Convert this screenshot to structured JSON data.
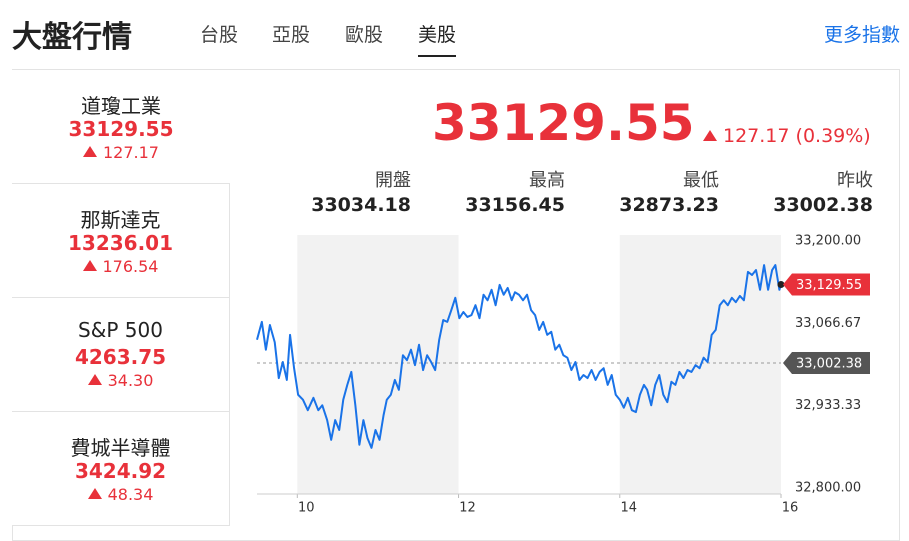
{
  "header": {
    "title": "大盤行情",
    "tabs": [
      "台股",
      "亞股",
      "歐股",
      "美股"
    ],
    "more": "更多指數"
  },
  "indices": [
    {
      "name": "道瓊工業",
      "value": "33129.55",
      "change": "127.17"
    },
    {
      "name": "那斯達克",
      "value": "13236.01",
      "change": "176.54"
    },
    {
      "name": "S&P 500",
      "value": "4263.75",
      "change": "34.30"
    },
    {
      "name": "費城半導體",
      "value": "3424.92",
      "change": "48.34"
    }
  ],
  "quote": {
    "price": "33129.55",
    "change": "127.17",
    "change_percent": "(0.39%)",
    "stats": [
      {
        "label": "開盤",
        "value": "33034.18"
      },
      {
        "label": "最高",
        "value": "33156.45"
      },
      {
        "label": "最低",
        "value": "32873.23"
      },
      {
        "label": "昨收",
        "value": "33002.38"
      }
    ]
  },
  "chart_data": {
    "type": "line",
    "color": "#1a73e8",
    "x": [
      9.5,
      9.56,
      9.61,
      9.66,
      9.72,
      9.77,
      9.82,
      9.87,
      9.91,
      9.96,
      10.01,
      10.07,
      10.13,
      10.2,
      10.26,
      10.31,
      10.37,
      10.42,
      10.47,
      10.52,
      10.57,
      10.62,
      10.67,
      10.72,
      10.77,
      10.82,
      10.87,
      10.92,
      10.97,
      11.02,
      11.07,
      11.11,
      11.16,
      11.21,
      11.26,
      11.31,
      11.36,
      11.41,
      11.46,
      11.51,
      11.56,
      11.61,
      11.66,
      11.71,
      11.76,
      11.81,
      11.86,
      11.91,
      11.96,
      12.01,
      12.06,
      12.11,
      12.16,
      12.21,
      12.26,
      12.31,
      12.36,
      12.41,
      12.46,
      12.51,
      12.56,
      12.61,
      12.66,
      12.7,
      12.75,
      12.8,
      12.85,
      12.9,
      12.95,
      13.0,
      13.05,
      13.1,
      13.15,
      13.2,
      13.25,
      13.3,
      13.35,
      13.4,
      13.45,
      13.5,
      13.55,
      13.6,
      13.65,
      13.7,
      13.75,
      13.8,
      13.85,
      13.9,
      13.95,
      14.0,
      14.05,
      14.1,
      14.15,
      14.2,
      14.25,
      14.3,
      14.34,
      14.39,
      14.44,
      14.49,
      14.54,
      14.59,
      14.64,
      14.69,
      14.74,
      14.79,
      14.84,
      14.89,
      14.94,
      14.99,
      15.04,
      15.09,
      15.14,
      15.19,
      15.24,
      15.29,
      15.34,
      15.39,
      15.44,
      15.49,
      15.54,
      15.59,
      15.64,
      15.69,
      15.74,
      15.79,
      15.84,
      15.89,
      15.93,
      15.98,
      16
    ],
    "values": [
      33040,
      33069,
      33024,
      33064,
      33036,
      32978,
      33004,
      32975,
      33048,
      32994,
      32951,
      32943,
      32926,
      32946,
      32926,
      32934,
      32910,
      32878,
      32910,
      32894,
      32943,
      32967,
      32988,
      32934,
      32870,
      32910,
      32881,
      32865,
      32894,
      32878,
      32918,
      32943,
      32951,
      32975,
      32959,
      33015,
      33007,
      33024,
      32999,
      33032,
      32991,
      33015,
      33004,
      32991,
      33040,
      33072,
      33069,
      33088,
      33108,
      33075,
      33085,
      33077,
      33080,
      33096,
      33075,
      33113,
      33104,
      33121,
      33096,
      33129,
      33113,
      33124,
      33104,
      33117,
      33113,
      33104,
      33113,
      33088,
      33080,
      33056,
      33069,
      33048,
      33053,
      33024,
      33032,
      33015,
      33011,
      32991,
      33004,
      32975,
      32983,
      32978,
      32991,
      32975,
      32988,
      32994,
      32967,
      32983,
      32951,
      32943,
      32930,
      32946,
      32926,
      32923,
      32951,
      32967,
      32959,
      32934,
      32967,
      32983,
      32951,
      32939,
      32972,
      32967,
      32988,
      32978,
      32991,
      32988,
      32999,
      32994,
      33011,
      33004,
      33048,
      33056,
      33096,
      33104,
      33096,
      33108,
      33101,
      33111,
      33104,
      33150,
      33145,
      33153,
      33121,
      33161,
      33121,
      33153,
      33161,
      33121,
      33129.55
    ],
    "xlim": [
      9.5,
      16
    ],
    "xticks": [
      10,
      12,
      14,
      16
    ],
    "ylim": [
      32800,
      33200
    ],
    "yticks": [
      {
        "value": 32800,
        "label": "32,800.00"
      },
      {
        "value": 32933.33,
        "label": "32,933.33"
      },
      {
        "value": 33066.67,
        "label": "33,066.67"
      },
      {
        "value": 33200,
        "label": "33,200.00"
      }
    ],
    "markers": [
      {
        "value": 33129.55,
        "label": "33,129.55",
        "color": "#e8313a"
      },
      {
        "value": 33002.38,
        "label": "33,002.38",
        "color": "#555555"
      }
    ]
  }
}
